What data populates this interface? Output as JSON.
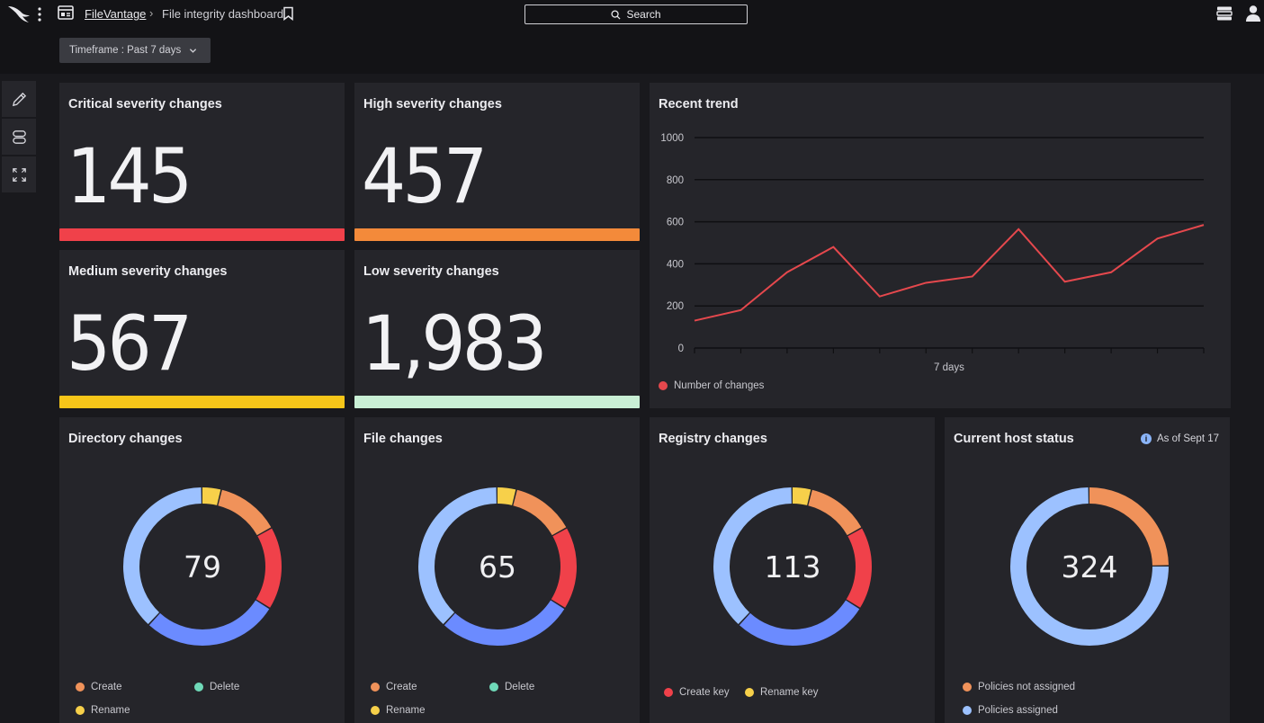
{
  "app": {
    "name": "FileVantage",
    "breadcrumb_sep": "›",
    "page_title": "File integrity dashboard"
  },
  "search": {
    "label": "Search"
  },
  "timeframe": {
    "label": "Timeframe : Past 7 days"
  },
  "severity_cards": [
    {
      "title": "Critical severity changes",
      "value": "145",
      "color": "#f0414a"
    },
    {
      "title": "High severity changes",
      "value": "457",
      "color": "#f38a3a"
    },
    {
      "title": "Medium severity changes",
      "value": "567",
      "color": "#f7c619"
    },
    {
      "title": "Low severity changes",
      "value": "1,983",
      "color": "#c9efd5"
    }
  ],
  "trend": {
    "title": "Recent trend",
    "legend": "Number of changes",
    "line_color": "#e5484d"
  },
  "chart_data": {
    "type": "line",
    "title": "Recent trend",
    "xlabel": "7 days",
    "ylabel": "",
    "ylim": [
      0,
      1000
    ],
    "yticks": [
      0,
      200,
      400,
      600,
      800,
      1000
    ],
    "grid": true,
    "legend_placement": "bottom-left",
    "series": [
      {
        "name": "Number of changes",
        "values": [
          130,
          180,
          360,
          480,
          245,
          310,
          340,
          565,
          315,
          360,
          520,
          585
        ]
      }
    ]
  },
  "donuts": [
    {
      "title": "Directory changes",
      "value": "79",
      "legend": [
        {
          "label": "Create",
          "color": "#f0925a"
        },
        {
          "label": "Delete",
          "color": "#6fd9b8"
        },
        {
          "label": "Rename",
          "color": "#f7d04a"
        }
      ]
    },
    {
      "title": "File changes",
      "value": "65",
      "legend": [
        {
          "label": "Create",
          "color": "#f0925a"
        },
        {
          "label": "Delete",
          "color": "#6fd9b8"
        },
        {
          "label": "Rename",
          "color": "#f7d04a"
        }
      ]
    },
    {
      "title": "Registry changes",
      "value": "113",
      "legend": [
        {
          "label": "Create key",
          "color": "#f0414a"
        },
        {
          "label": "Rename key",
          "color": "#f7d04a"
        }
      ]
    },
    {
      "title": "Current host status",
      "value": "324",
      "as_of": "As of Sept 17",
      "legend": [
        {
          "label": "Policies not assigned",
          "color": "#f0925a"
        },
        {
          "label": "Policies assigned",
          "color": "#9cc1ff"
        }
      ]
    }
  ],
  "donut_segments": {
    "change": [
      {
        "fraction": 0.04,
        "color": "#f7d04a"
      },
      {
        "fraction": 0.13,
        "color": "#f0925a"
      },
      {
        "fraction": 0.17,
        "color": "#f0414a"
      },
      {
        "fraction": 0.28,
        "color": "#6b8bff"
      },
      {
        "fraction": 0.38,
        "color": "#9cc1ff"
      }
    ],
    "host": [
      {
        "fraction": 0.25,
        "color": "#f0925a"
      },
      {
        "fraction": 0.75,
        "color": "#9cc1ff"
      }
    ]
  }
}
